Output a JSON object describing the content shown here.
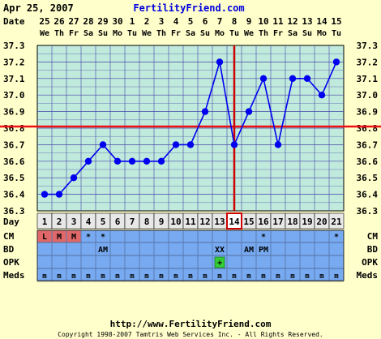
{
  "header": {
    "date_label": "Apr 25, 2007",
    "site_name": "FertilityFriend.com"
  },
  "footer": {
    "url": "http://www.FertilityFriend.com",
    "copyright": "Copyright 1998-2007 Tamtris Web Services Inc. - All Rights Reserved."
  },
  "colors": {
    "background": "#ffffcc",
    "plot_bg": "#c0eadc",
    "grid": "#4444aa",
    "series": "#0000ee",
    "coverline": "#ee1111",
    "ovulation_line": "#cc0000",
    "row_band": "#77aaf0",
    "row_highlight": "#e06868",
    "opk_positive": "#33cc33",
    "link_blue": "#0000dd"
  },
  "chart_data": {
    "type": "line",
    "row_labels": {
      "date": "Date",
      "day": "Day",
      "cm": "CM",
      "bd": "BD",
      "opk": "OPK",
      "meds": "Meds"
    },
    "dates": [
      "25",
      "26",
      "27",
      "28",
      "29",
      "30",
      "1",
      "2",
      "3",
      "4",
      "5",
      "6",
      "7",
      "8",
      "9",
      "10",
      "11",
      "12",
      "13",
      "14",
      "15"
    ],
    "weekdays": [
      "We",
      "Th",
      "Fr",
      "Sa",
      "Su",
      "Mo",
      "Tu",
      "We",
      "Th",
      "Fr",
      "Sa",
      "Su",
      "Mo",
      "Tu",
      "We",
      "Th",
      "Fr",
      "Sa",
      "Su",
      "Mo",
      "Tu"
    ],
    "days": [
      1,
      2,
      3,
      4,
      5,
      6,
      7,
      8,
      9,
      10,
      11,
      12,
      13,
      14,
      15,
      16,
      17,
      18,
      19,
      20,
      21
    ],
    "yticks": [
      "37.3",
      "37.2",
      "37.1",
      "37.0",
      "36.9",
      "36.8",
      "36.7",
      "36.6",
      "36.5",
      "36.4",
      "36.3"
    ],
    "ylim": [
      36.3,
      37.3
    ],
    "temperatures": [
      36.4,
      36.4,
      36.5,
      36.6,
      36.7,
      36.6,
      36.6,
      36.6,
      36.6,
      36.7,
      36.7,
      36.9,
      37.2,
      36.7,
      36.9,
      37.1,
      36.7,
      37.1,
      37.1,
      37.0,
      37.2
    ],
    "coverline": 36.81,
    "ovulation_day": 14,
    "cm": [
      "L",
      "M",
      "M",
      "*",
      "*",
      "",
      "",
      "",
      "",
      "",
      "",
      "",
      "",
      "",
      "",
      "*",
      "",
      "",
      "",
      "",
      "*"
    ],
    "cm_highlight": [
      1,
      2,
      3
    ],
    "bd": [
      "",
      "",
      "",
      "",
      "AM",
      "",
      "",
      "",
      "",
      "",
      "",
      "",
      "XX",
      "",
      "AM",
      "PM",
      "",
      "",
      "",
      "",
      ""
    ],
    "opk": [
      "",
      "",
      "",
      "",
      "",
      "",
      "",
      "",
      "",
      "",
      "",
      "",
      "+",
      "",
      "",
      "",
      "",
      "",
      "",
      "",
      ""
    ],
    "meds": [
      "m",
      "m",
      "m",
      "m",
      "m",
      "m",
      "m",
      "m",
      "m",
      "m",
      "m",
      "m",
      "m",
      "m",
      "m",
      "m",
      "m",
      "m",
      "m",
      "m",
      "m"
    ],
    "grid": true
  }
}
